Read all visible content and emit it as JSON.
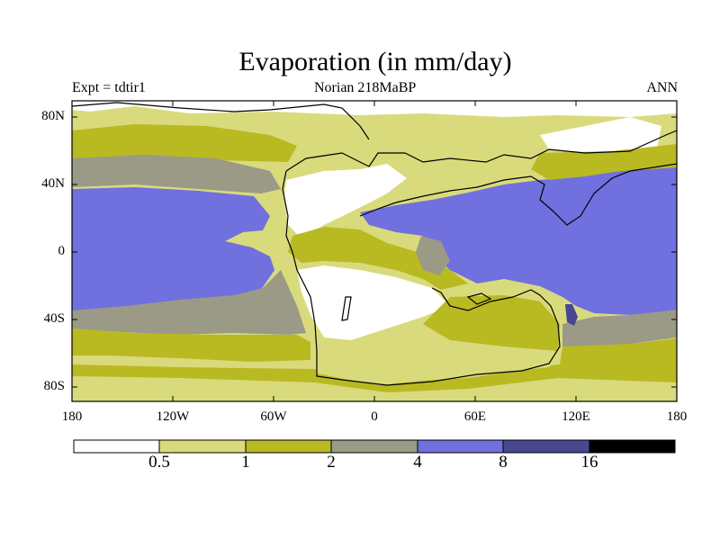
{
  "title": "Evaporation (in mm/day)",
  "experiment": "Expt = tdtir1",
  "subtitle": "Norian   218MaBP",
  "season": "ANN",
  "y_ticks": [
    "80N",
    "40N",
    "0",
    "40S",
    "80S"
  ],
  "x_ticks": [
    "180",
    "120W",
    "60W",
    "0",
    "60E",
    "120E",
    "180"
  ],
  "colorbar": {
    "levels": [
      "0.5",
      "1",
      "2",
      "4",
      "8",
      "16"
    ],
    "colors": [
      "#ffffff",
      "#d9da7c",
      "#b9b922",
      "#9a9a86",
      "#7070df",
      "#484891",
      "#000000"
    ]
  }
}
